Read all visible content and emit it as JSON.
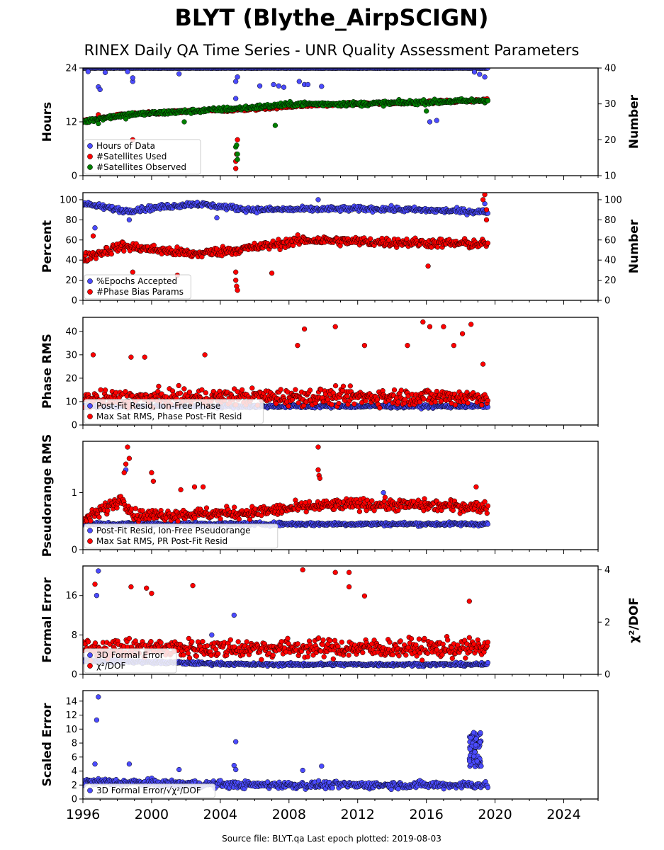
{
  "figure": {
    "title": "BLYT (Blythe_AirpSCIGN)",
    "subtitle": "RINEX Daily QA Time Series - UNR Quality Assessment Parameters",
    "footer": "Source file: BLYT.qa Last epoch plotted: 2019-08-03"
  },
  "colors": {
    "blue": "#4b4bff",
    "red": "#ff0000",
    "green": "#008000",
    "edge": "#000000"
  },
  "chart_data": [
    {
      "id": "p1",
      "type": "scatter",
      "ylabel": "Hours",
      "ylabel_right": "Number",
      "xlim": [
        1996,
        2026
      ],
      "ylim": [
        0,
        24
      ],
      "ylim_right": [
        10,
        40
      ],
      "yticks": [
        "0",
        "12",
        "24"
      ],
      "yticks_right": [
        "10",
        "20",
        "30",
        "40"
      ],
      "legend": [
        "Hours of Data",
        "#Satellites Used",
        "#Satellites Observed"
      ],
      "legend_position": "lower-left",
      "series": [
        {
          "name": "Hours of Data",
          "color": "blue",
          "axis": "left",
          "mode": "const",
          "level": 24,
          "noise": 0.05,
          "outliers": [
            [
              1996.3,
              23.2
            ],
            [
              1996.9,
              19.8
            ],
            [
              1997.0,
              19.2
            ],
            [
              1997.3,
              23.0
            ],
            [
              1998.6,
              23.2
            ],
            [
              1998.9,
              21.0
            ],
            [
              1998.9,
              21.8
            ],
            [
              2001.6,
              22.7
            ],
            [
              2004.9,
              17.2
            ],
            [
              2004.9,
              21.0
            ],
            [
              2005.0,
              22.0
            ],
            [
              2006.3,
              20.0
            ],
            [
              2007.1,
              20.3
            ],
            [
              2007.4,
              20.0
            ],
            [
              2007.7,
              19.7
            ],
            [
              2008.6,
              21.0
            ],
            [
              2008.9,
              20.3
            ],
            [
              2009.1,
              20.3
            ],
            [
              2009.9,
              19.9
            ],
            [
              2016.2,
              12.0
            ],
            [
              2016.6,
              12.3
            ],
            [
              2018.8,
              23.1
            ],
            [
              2019.1,
              22.6
            ],
            [
              2019.4,
              22.0
            ]
          ]
        },
        {
          "name": "#Satellites Used",
          "color": "red",
          "axis": "right",
          "mode": "piecewise",
          "segments": [
            [
              1996.0,
              25.0
            ],
            [
              1997.0,
              26.0
            ],
            [
              1998.5,
              27.0
            ],
            [
              2002.5,
              28.0
            ],
            [
              2005.8,
              28.5
            ],
            [
              2008.5,
              29.5
            ],
            [
              2012.0,
              30.0
            ],
            [
              2016.0,
              30.5
            ],
            [
              2019.6,
              31.0
            ]
          ],
          "noise": 0.4,
          "outliers": [
            [
              1996.9,
              27.0
            ],
            [
              1998.9,
              20.0
            ],
            [
              2004.9,
              14.0
            ],
            [
              2004.9,
              12.0
            ],
            [
              2004.95,
              16.0
            ],
            [
              2005.0,
              20.0
            ]
          ]
        },
        {
          "name": "#Satellites Observed",
          "color": "green",
          "axis": "right",
          "mode": "piecewise",
          "segments": [
            [
              1996.0,
              25.0
            ],
            [
              1997.0,
              26.0
            ],
            [
              1998.5,
              27.0
            ],
            [
              2002.5,
              28.0
            ],
            [
              2005.8,
              29.0
            ],
            [
              2008.5,
              30.0
            ],
            [
              2012.0,
              30.0
            ],
            [
              2016.0,
              30.5
            ],
            [
              2019.6,
              31.0
            ]
          ],
          "noise": 0.6,
          "outliers": [
            [
              1996.9,
              24.5
            ],
            [
              1998.5,
              25.8
            ],
            [
              2001.9,
              25.0
            ],
            [
              2004.9,
              18.0
            ],
            [
              2004.95,
              18.5
            ],
            [
              2005.0,
              16.0
            ],
            [
              2005.0,
              14.5
            ],
            [
              2007.2,
              24.0
            ],
            [
              2016.0,
              28.0
            ]
          ]
        }
      ]
    },
    {
      "id": "p2",
      "type": "scatter",
      "ylabel": "Percent",
      "ylabel_right": "Number",
      "xlim": [
        1996,
        2026
      ],
      "ylim": [
        0,
        107
      ],
      "ylim_right": [
        0,
        107
      ],
      "yticks": [
        "0",
        "20",
        "40",
        "60",
        "80",
        "100"
      ],
      "yticks_right": [
        "0",
        "20",
        "40",
        "60",
        "80",
        "100"
      ],
      "legend": [
        "%Epochs Accepted",
        "#Phase Bias Params"
      ],
      "legend_position": "lower-left",
      "series": [
        {
          "name": "%Epochs Accepted",
          "color": "blue",
          "axis": "left",
          "mode": "piecewise",
          "segments": [
            [
              1996.0,
              96.0
            ],
            [
              1998.5,
              89.0
            ],
            [
              2002.5,
              96.0
            ],
            [
              2005.8,
              90.0
            ],
            [
              2013.0,
              91.0
            ],
            [
              2019.3,
              88.0
            ]
          ],
          "noise": 2.5,
          "outliers": [
            [
              1996.7,
              72.0
            ],
            [
              1998.7,
              80.0
            ],
            [
              2003.8,
              82.0
            ],
            [
              2009.7,
              100.0
            ],
            [
              2019.4,
              96.0
            ]
          ]
        },
        {
          "name": "#Phase Bias Params",
          "color": "red",
          "axis": "right",
          "mode": "piecewise",
          "segments": [
            [
              1996.0,
              42.0
            ],
            [
              1998.3,
              54.0
            ],
            [
              2002.5,
              46.0
            ],
            [
              2005.8,
              52.0
            ],
            [
              2009.0,
              60.0
            ],
            [
              2013.0,
              58.0
            ],
            [
              2019.3,
              56.0
            ]
          ],
          "noise": 4.5,
          "outliers": [
            [
              1996.6,
              64.0
            ],
            [
              1998.9,
              28.0
            ],
            [
              2001.5,
              25.0
            ],
            [
              2004.9,
              28.0
            ],
            [
              2004.9,
              20.0
            ],
            [
              2004.95,
              14.0
            ],
            [
              2005.0,
              10.0
            ],
            [
              2007.0,
              27.0
            ],
            [
              2016.1,
              34.0
            ],
            [
              2019.3,
              100.0
            ],
            [
              2019.4,
              105.0
            ],
            [
              2019.5,
              90.0
            ],
            [
              2019.5,
              80.0
            ]
          ]
        }
      ]
    },
    {
      "id": "p3",
      "type": "scatter",
      "ylabel": "Phase RMS",
      "xlim": [
        1996,
        2026
      ],
      "ylim": [
        0,
        46
      ],
      "yticks": [
        "0",
        "10",
        "20",
        "30",
        "40"
      ],
      "legend": [
        "Post-Fit Resid, Ion-Free Phase",
        "Max Sat RMS, Phase Post-Fit Resid"
      ],
      "legend_position": "lower-left",
      "series": [
        {
          "name": "Post-Fit Resid, Ion-Free Phase",
          "color": "blue",
          "axis": "left",
          "mode": "const",
          "level": 8.0,
          "noise": 0.7,
          "outliers": []
        },
        {
          "name": "Max Sat RMS, Phase Post-Fit Resid",
          "color": "red",
          "axis": "left",
          "mode": "piecewise",
          "segments": [
            [
              1996.0,
              11.0
            ],
            [
              2005.8,
              12.0
            ],
            [
              2019.6,
              12.0
            ]
          ],
          "noise": 3.5,
          "outliers": [
            [
              1996.6,
              30.0
            ],
            [
              1998.8,
              29.0
            ],
            [
              1999.6,
              29.0
            ],
            [
              2003.1,
              30.0
            ],
            [
              2008.5,
              34.0
            ],
            [
              2008.9,
              41.0
            ],
            [
              2010.7,
              42.0
            ],
            [
              2012.4,
              34.0
            ],
            [
              2014.9,
              34.0
            ],
            [
              2015.8,
              44.0
            ],
            [
              2016.2,
              42.0
            ],
            [
              2017.0,
              42.0
            ],
            [
              2017.6,
              34.0
            ],
            [
              2018.1,
              39.0
            ],
            [
              2018.6,
              43.0
            ],
            [
              2019.3,
              26.0
            ]
          ]
        }
      ]
    },
    {
      "id": "p4",
      "type": "scatter",
      "ylabel": "Pseudorange RMS",
      "xlim": [
        1996,
        2026
      ],
      "ylim": [
        0,
        1.9
      ],
      "yticks": [
        "0",
        "1"
      ],
      "legend": [
        "Post-Fit Resid, Ion-Free Pseudorange",
        "Max Sat RMS, PR Post-Fit Resid"
      ],
      "legend_position": "lower-left",
      "series": [
        {
          "name": "Post-Fit Resid, Ion-Free Pseudorange",
          "color": "blue",
          "axis": "left",
          "mode": "const",
          "level": 0.45,
          "noise": 0.03,
          "outliers": [
            [
              1998.5,
              1.4
            ],
            [
              2013.5,
              1.0
            ]
          ]
        },
        {
          "name": "Max Sat RMS, PR Post-Fit Resid",
          "color": "red",
          "axis": "left",
          "mode": "piecewise",
          "segments": [
            [
              1996.0,
              0.5
            ],
            [
              1998.3,
              0.9
            ],
            [
              1999.0,
              0.6
            ],
            [
              2005.8,
              0.65
            ],
            [
              2009.0,
              0.75
            ],
            [
              2012.0,
              0.8
            ],
            [
              2019.6,
              0.75
            ]
          ],
          "noise": 0.1,
          "outliers": [
            [
              1998.6,
              1.8
            ],
            [
              1998.5,
              1.5
            ],
            [
              1998.4,
              1.35
            ],
            [
              1998.7,
              1.6
            ],
            [
              2000.0,
              1.35
            ],
            [
              2000.1,
              1.2
            ],
            [
              2001.7,
              1.05
            ],
            [
              2002.5,
              1.1
            ],
            [
              2003.0,
              1.1
            ],
            [
              2009.7,
              1.8
            ],
            [
              2009.7,
              1.4
            ],
            [
              2009.75,
              1.3
            ],
            [
              2009.8,
              1.25
            ],
            [
              2018.9,
              1.1
            ]
          ]
        }
      ]
    },
    {
      "id": "p5",
      "type": "scatter",
      "ylabel": "Formal Error",
      "ylabel_right": "χ²/DOF",
      "xlim": [
        1996,
        2026
      ],
      "ylim": [
        0,
        22
      ],
      "ylim_right": [
        0,
        4.15
      ],
      "yticks": [
        "0",
        "8",
        "16"
      ],
      "yticks_right": [
        "0",
        "2",
        "4"
      ],
      "legend": [
        "3D Formal Error",
        "χ²/DOF"
      ],
      "legend_position": "lower-left",
      "series": [
        {
          "name": "3D Formal Error",
          "color": "blue",
          "axis": "left",
          "mode": "piecewise",
          "segments": [
            [
              1996.0,
              2.8
            ],
            [
              2005.8,
              2.0
            ],
            [
              2019.6,
              2.0
            ]
          ],
          "noise": 0.3,
          "outliers": [
            [
              1996.9,
              21.0
            ],
            [
              1996.8,
              16.0
            ],
            [
              2004.8,
              12.0
            ],
            [
              2003.5,
              8.0
            ]
          ]
        },
        {
          "name": "χ²/DOF",
          "color": "red",
          "axis": "right",
          "mode": "piecewise",
          "segments": [
            [
              1996.0,
              1.0
            ],
            [
              2019.6,
              1.0
            ]
          ],
          "noise": 0.35,
          "outliers": [
            [
              1996.7,
              3.45
            ],
            [
              1998.8,
              3.35
            ],
            [
              1999.7,
              3.3
            ],
            [
              2000.0,
              3.1
            ],
            [
              2002.4,
              3.4
            ],
            [
              2008.8,
              4.0
            ],
            [
              2010.7,
              3.9
            ],
            [
              2011.5,
              3.9
            ],
            [
              2011.5,
              3.35
            ],
            [
              2012.4,
              3.0
            ],
            [
              2018.5,
              2.8
            ]
          ]
        }
      ]
    },
    {
      "id": "p6",
      "type": "scatter",
      "ylabel": "Scaled Error",
      "xlim": [
        1996,
        2026
      ],
      "ylim": [
        0,
        15.5
      ],
      "yticks": [
        "0",
        "2",
        "4",
        "6",
        "8",
        "10",
        "12",
        "14"
      ],
      "legend": [
        "3D Formal Error/√χ²/DOF"
      ],
      "legend_position": "lower-left",
      "xticks": [
        "1996",
        "2000",
        "2004",
        "2008",
        "2012",
        "2016",
        "2020",
        "2024"
      ],
      "series": [
        {
          "name": "3D Formal Error/√χ²/DOF",
          "color": "blue",
          "axis": "left",
          "mode": "piecewise",
          "segments": [
            [
              1996.0,
              2.5
            ],
            [
              2005.8,
              2.0
            ],
            [
              2018.5,
              2.0
            ]
          ],
          "noise": 0.5,
          "outliers": [
            [
              1996.9,
              14.6
            ],
            [
              1996.8,
              11.3
            ],
            [
              1996.7,
              5.0
            ],
            [
              1998.7,
              5.0
            ],
            [
              2001.6,
              4.2
            ],
            [
              2004.9,
              8.2
            ],
            [
              2004.8,
              4.8
            ],
            [
              2004.9,
              4.2
            ],
            [
              2008.8,
              4.1
            ],
            [
              2009.9,
              4.7
            ]
          ],
          "cluster": {
            "x0": 2018.5,
            "x1": 2019.2,
            "y0": 4.5,
            "y1": 9.5
          }
        }
      ]
    }
  ]
}
